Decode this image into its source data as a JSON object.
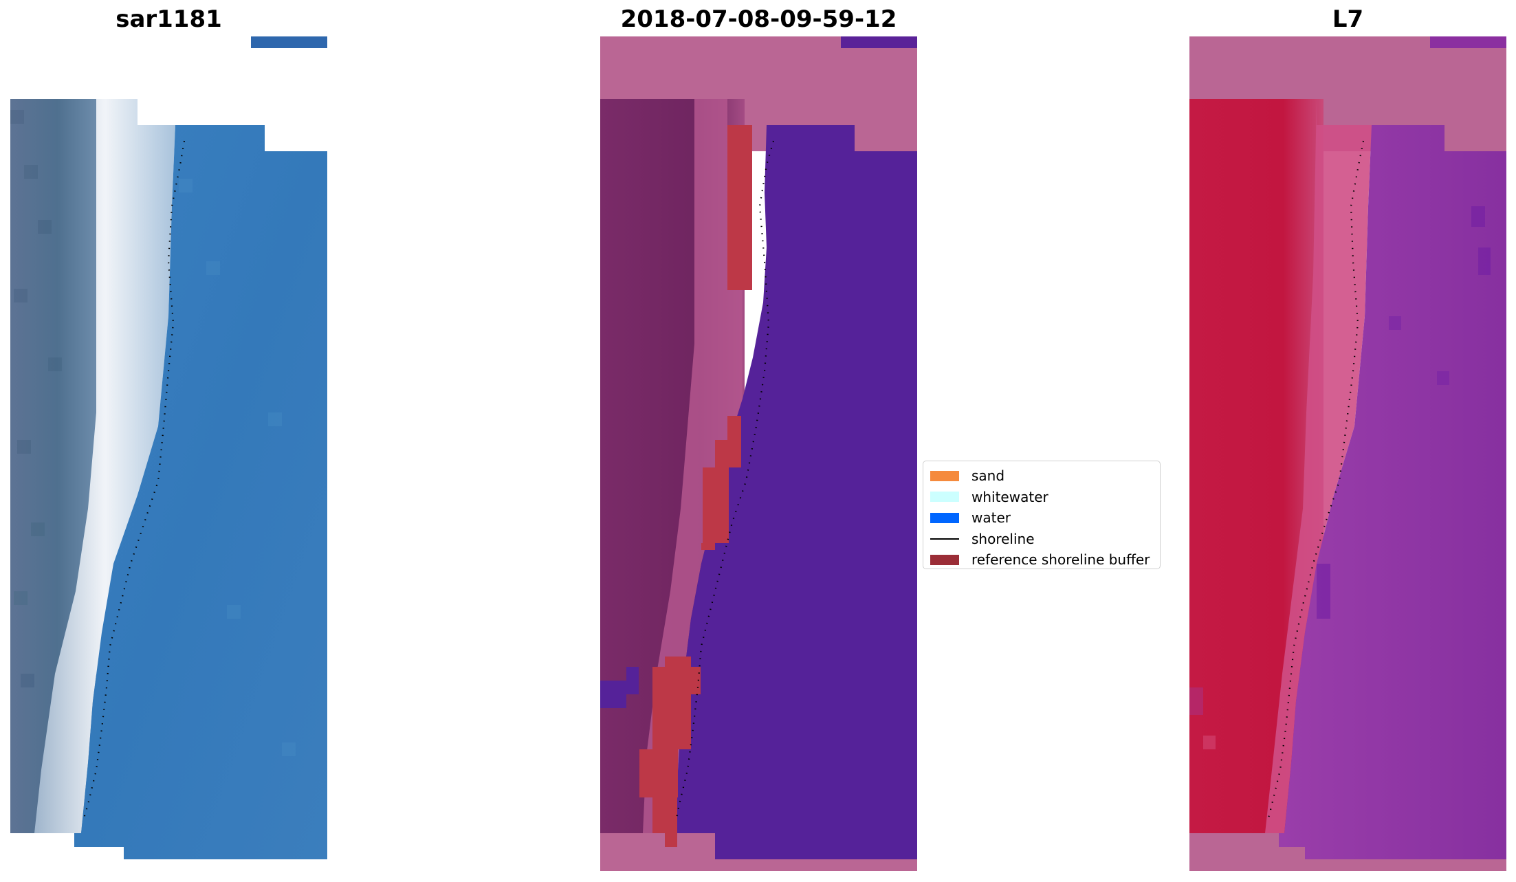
{
  "panels": {
    "left": {
      "title": "sar1181"
    },
    "middle": {
      "title": "2018-07-08-09-59-12"
    },
    "right": {
      "title": "L7"
    }
  },
  "legend": {
    "items": [
      {
        "label": "sand",
        "kind": "patch",
        "color": "#f58a3d"
      },
      {
        "label": "whitewater",
        "kind": "patch",
        "color": "#ccffff"
      },
      {
        "label": "water",
        "kind": "patch",
        "color": "#0066ff"
      },
      {
        "label": "shoreline",
        "kind": "line",
        "color": "#000000"
      },
      {
        "label": "reference shoreline buffer",
        "kind": "patch",
        "color": "#9b2d37"
      }
    ]
  },
  "colors": {
    "rgb_water": "#3a7dbd",
    "rgb_land": "#4f6d8c",
    "rgb_whitewater": "#eef2f8",
    "class_water": "#552299",
    "class_land": "#7a2a66",
    "class_nodata": "#ba6694",
    "class_buffer": "#bd3847",
    "l7_land": "#c8173e",
    "l7_water": "#8a2fa0",
    "l7_nodata": "#ba6694"
  }
}
